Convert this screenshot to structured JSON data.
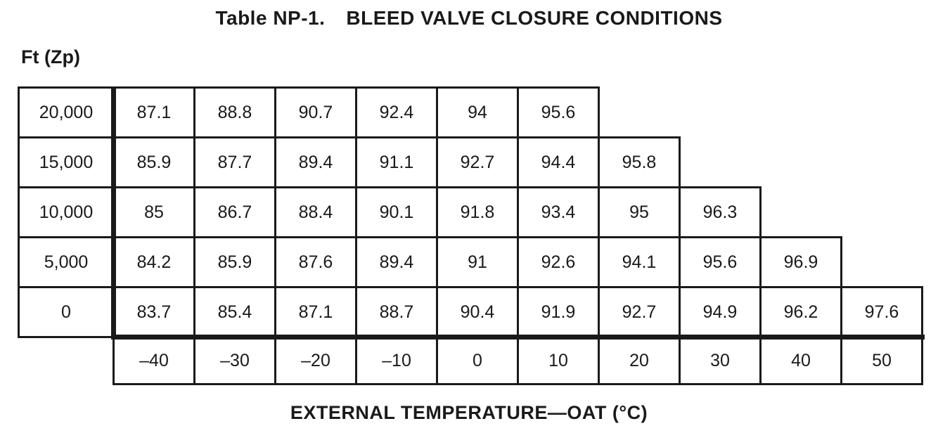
{
  "title": {
    "prefix": "Table NP-1.",
    "main": "BLEED VALVE CLOSURE CONDITIONS"
  },
  "chart_data": {
    "type": "table",
    "title": "Table NP-1. BLEED VALVE CLOSURE CONDITIONS",
    "row_header_label": "Ft (Zp)",
    "column_footer_label": "EXTERNAL TEMPERATURE—OAT (°C)",
    "row_axis": "pressure altitude Zp (ft)",
    "column_axis": "outside air temperature OAT (°C)",
    "oat_c": [
      "–40",
      "–30",
      "–20",
      "–10",
      "0",
      "10",
      "20",
      "30",
      "40",
      "50"
    ],
    "rows": [
      {
        "altitude": "20,000",
        "values": [
          "87.1",
          "88.8",
          "90.7",
          "92.4",
          "94",
          "95.6"
        ]
      },
      {
        "altitude": "15,000",
        "values": [
          "85.9",
          "87.7",
          "89.4",
          "91.1",
          "92.7",
          "94.4",
          "95.8"
        ]
      },
      {
        "altitude": "10,000",
        "values": [
          "85",
          "86.7",
          "88.4",
          "90.1",
          "91.8",
          "93.4",
          "95",
          "96.3"
        ]
      },
      {
        "altitude": "5,000",
        "values": [
          "84.2",
          "85.9",
          "87.6",
          "89.4",
          "91",
          "92.6",
          "94.1",
          "95.6",
          "96.9"
        ]
      },
      {
        "altitude": "0",
        "values": [
          "83.7",
          "85.4",
          "87.1",
          "88.7",
          "90.4",
          "91.9",
          "92.7",
          "94.9",
          "96.2",
          "97.6"
        ]
      }
    ]
  },
  "colors": {
    "ink": "#1a1a1a",
    "paper": "#ffffff"
  }
}
